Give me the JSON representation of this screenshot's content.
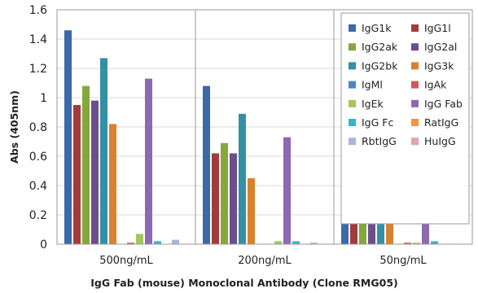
{
  "chart_data": {
    "type": "bar",
    "title": "",
    "xlabel": "IgG Fab (mouse) Monoclonal Antibody (Clone RMG05)",
    "ylabel": "Abs (405nm)",
    "ylim": [
      0,
      1.6
    ],
    "yticks": [
      "0",
      "0.2",
      "0.4",
      "0.6",
      "0.8",
      "1",
      "1.2",
      "1.4",
      "1.6"
    ],
    "categories": [
      "500ng/mL",
      "200ng/mL",
      "50ng/mL"
    ],
    "legend_position": "top-right",
    "series": [
      {
        "name": "IgG1k",
        "color": "#3b6aa8",
        "values": [
          1.46,
          1.08,
          0.5
        ]
      },
      {
        "name": "IgG1l",
        "color": "#a33b3b",
        "values": [
          0.95,
          0.62,
          0.38
        ]
      },
      {
        "name": "IgG2ak",
        "color": "#85a83c",
        "values": [
          1.08,
          0.69,
          0.36
        ]
      },
      {
        "name": "IgG2al",
        "color": "#6b4e8c",
        "values": [
          0.98,
          0.62,
          0.36
        ]
      },
      {
        "name": "IgG2bk",
        "color": "#3291a4",
        "values": [
          1.27,
          0.89,
          0.42
        ]
      },
      {
        "name": "IgG3k",
        "color": "#d8822e",
        "values": [
          0.82,
          0.45,
          0.17
        ]
      },
      {
        "name": "IgMl",
        "color": "#4a86c8",
        "values": [
          0.0,
          0.0,
          0.0
        ]
      },
      {
        "name": "IgAk",
        "color": "#d05757",
        "values": [
          0.01,
          0.0,
          0.01
        ]
      },
      {
        "name": "IgEk",
        "color": "#a4c65c",
        "values": [
          0.07,
          0.02,
          0.01
        ]
      },
      {
        "name": "IgG Fab",
        "color": "#8e68b3",
        "values": [
          1.13,
          0.73,
          0.3
        ]
      },
      {
        "name": "IgG Fc",
        "color": "#38b3ce",
        "values": [
          0.02,
          0.02,
          0.02
        ]
      },
      {
        "name": "RatIgG",
        "color": "#f0963f",
        "values": [
          0.0,
          0.0,
          0.0
        ]
      },
      {
        "name": "RbtIgG",
        "color": "#a7b6d9",
        "values": [
          0.03,
          0.01,
          0.0
        ]
      },
      {
        "name": "HuIgG",
        "color": "#e0a5a5",
        "values": [
          0.0,
          0.0,
          0.0
        ]
      }
    ]
  }
}
